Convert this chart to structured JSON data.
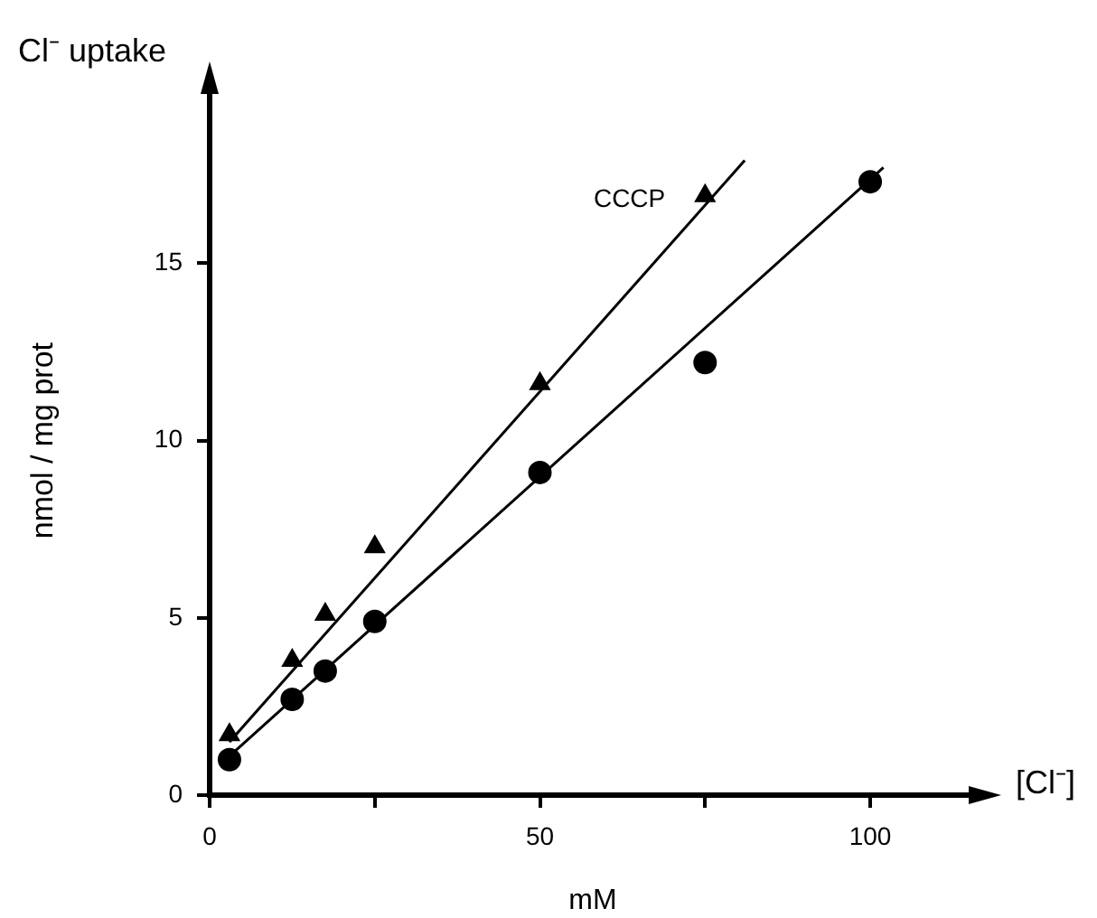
{
  "chart_data": {
    "type": "scatter",
    "title": "Cl⁻ uptake",
    "xlabel": "mM",
    "ylabel": "nmol / mg prot",
    "annotations": [
      "[Cl⁻]"
    ],
    "xlim": [
      0,
      116
    ],
    "xticks": [
      0,
      {
        "value": 25,
        "label": null
      },
      50,
      {
        "value": 75,
        "label": null
      },
      100
    ],
    "ylim": [
      0,
      20
    ],
    "yticks": [
      0,
      5,
      10,
      15
    ],
    "grid": false,
    "legend": false,
    "series": [
      {
        "type": "scatter",
        "color": "#000000",
        "marker": "circle",
        "x": [
          3,
          12.5,
          17.5,
          25,
          50,
          75,
          100
        ],
        "values": [
          1.0,
          2.7,
          3.5,
          4.9,
          9.1,
          12.2,
          17.3
        ]
      },
      {
        "type": "scatter",
        "name": "CCCP",
        "color": "#000000",
        "marker": "triangle",
        "x": [
          3,
          12.5,
          17.5,
          25,
          50,
          75
        ],
        "values": [
          1.7,
          3.8,
          5.1,
          7.0,
          11.6,
          16.9
        ]
      },
      {
        "type": "line",
        "color": "#000000",
        "marker": "none",
        "x": [
          3,
          102
        ],
        "values": [
          1.1,
          17.7
        ]
      },
      {
        "type": "line",
        "color": "#000000",
        "marker": "none",
        "x": [
          3,
          81
        ],
        "values": [
          1.5,
          17.9
        ]
      }
    ]
  }
}
